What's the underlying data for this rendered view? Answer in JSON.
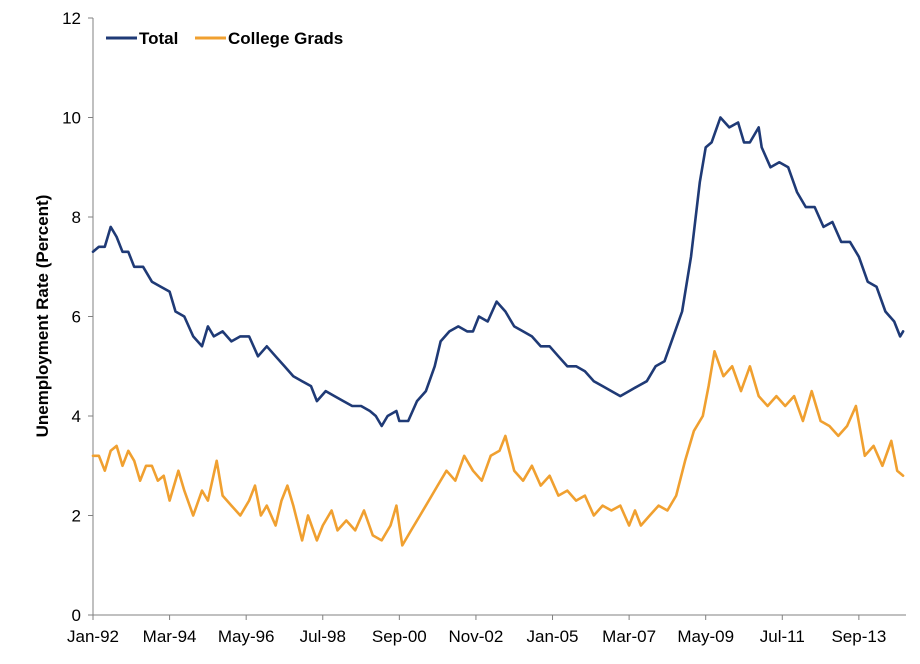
{
  "chart_data": {
    "type": "line",
    "title": "",
    "xlabel": "",
    "ylabel": "Unemployment  Rate (Percent)",
    "ylim": [
      0,
      12
    ],
    "yticks": [
      0,
      2,
      4,
      6,
      8,
      10,
      12
    ],
    "xlim": [
      "1992-01",
      "2014-12"
    ],
    "xtick_labels": [
      "Jan-92",
      "Mar-94",
      "May-96",
      "Jul-98",
      "Sep-00",
      "Nov-02",
      "Jan-05",
      "Mar-07",
      "May-09",
      "Jul-11",
      "Sep-13"
    ],
    "grid": false,
    "legend": "top-left",
    "series": [
      {
        "name": "Total",
        "color": "#1F3A76",
        "points": [
          [
            "1992-01",
            7.3
          ],
          [
            "1992-03",
            7.4
          ],
          [
            "1992-05",
            7.4
          ],
          [
            "1992-07",
            7.8
          ],
          [
            "1992-09",
            7.6
          ],
          [
            "1992-11",
            7.3
          ],
          [
            "1993-01",
            7.3
          ],
          [
            "1993-03",
            7.0
          ],
          [
            "1993-06",
            7.0
          ],
          [
            "1993-09",
            6.7
          ],
          [
            "1993-12",
            6.6
          ],
          [
            "1994-03",
            6.5
          ],
          [
            "1994-05",
            6.1
          ],
          [
            "1994-08",
            6.0
          ],
          [
            "1994-11",
            5.6
          ],
          [
            "1995-02",
            5.4
          ],
          [
            "1995-04",
            5.8
          ],
          [
            "1995-06",
            5.6
          ],
          [
            "1995-09",
            5.7
          ],
          [
            "1995-12",
            5.5
          ],
          [
            "1996-03",
            5.6
          ],
          [
            "1996-06",
            5.6
          ],
          [
            "1996-09",
            5.2
          ],
          [
            "1996-12",
            5.4
          ],
          [
            "1997-03",
            5.2
          ],
          [
            "1997-06",
            5.0
          ],
          [
            "1997-09",
            4.8
          ],
          [
            "1997-12",
            4.7
          ],
          [
            "1998-03",
            4.6
          ],
          [
            "1998-05",
            4.3
          ],
          [
            "1998-08",
            4.5
          ],
          [
            "1998-11",
            4.4
          ],
          [
            "1999-02",
            4.3
          ],
          [
            "1999-05",
            4.2
          ],
          [
            "1999-08",
            4.2
          ],
          [
            "1999-11",
            4.1
          ],
          [
            "2000-01",
            4.0
          ],
          [
            "2000-03",
            3.8
          ],
          [
            "2000-05",
            4.0
          ],
          [
            "2000-08",
            4.1
          ],
          [
            "2000-09",
            3.9
          ],
          [
            "2000-12",
            3.9
          ],
          [
            "2001-03",
            4.3
          ],
          [
            "2001-06",
            4.5
          ],
          [
            "2001-09",
            5.0
          ],
          [
            "2001-11",
            5.5
          ],
          [
            "2002-02",
            5.7
          ],
          [
            "2002-05",
            5.8
          ],
          [
            "2002-08",
            5.7
          ],
          [
            "2002-10",
            5.7
          ],
          [
            "2002-12",
            6.0
          ],
          [
            "2003-03",
            5.9
          ],
          [
            "2003-06",
            6.3
          ],
          [
            "2003-09",
            6.1
          ],
          [
            "2003-12",
            5.8
          ],
          [
            "2004-03",
            5.7
          ],
          [
            "2004-06",
            5.6
          ],
          [
            "2004-09",
            5.4
          ],
          [
            "2004-12",
            5.4
          ],
          [
            "2005-03",
            5.2
          ],
          [
            "2005-06",
            5.0
          ],
          [
            "2005-09",
            5.0
          ],
          [
            "2005-12",
            4.9
          ],
          [
            "2006-03",
            4.7
          ],
          [
            "2006-06",
            4.6
          ],
          [
            "2006-09",
            4.5
          ],
          [
            "2006-12",
            4.4
          ],
          [
            "2007-03",
            4.5
          ],
          [
            "2007-06",
            4.6
          ],
          [
            "2007-09",
            4.7
          ],
          [
            "2007-12",
            5.0
          ],
          [
            "2008-03",
            5.1
          ],
          [
            "2008-06",
            5.6
          ],
          [
            "2008-09",
            6.1
          ],
          [
            "2008-12",
            7.2
          ],
          [
            "2009-03",
            8.7
          ],
          [
            "2009-05",
            9.4
          ],
          [
            "2009-07",
            9.5
          ],
          [
            "2009-10",
            10.0
          ],
          [
            "2010-01",
            9.8
          ],
          [
            "2010-04",
            9.9
          ],
          [
            "2010-06",
            9.5
          ],
          [
            "2010-08",
            9.5
          ],
          [
            "2010-11",
            9.8
          ],
          [
            "2010-12",
            9.4
          ],
          [
            "2011-03",
            9.0
          ],
          [
            "2011-06",
            9.1
          ],
          [
            "2011-09",
            9.0
          ],
          [
            "2011-12",
            8.5
          ],
          [
            "2012-03",
            8.2
          ],
          [
            "2012-06",
            8.2
          ],
          [
            "2012-09",
            7.8
          ],
          [
            "2012-12",
            7.9
          ],
          [
            "2013-03",
            7.5
          ],
          [
            "2013-06",
            7.5
          ],
          [
            "2013-09",
            7.2
          ],
          [
            "2013-12",
            6.7
          ],
          [
            "2014-03",
            6.6
          ],
          [
            "2014-06",
            6.1
          ],
          [
            "2014-09",
            5.9
          ],
          [
            "2014-11",
            5.6
          ],
          [
            "2014-12",
            5.7
          ]
        ]
      },
      {
        "name": "College Grads",
        "color": "#F0A030",
        "points": [
          [
            "1992-01",
            3.2
          ],
          [
            "1992-03",
            3.2
          ],
          [
            "1992-05",
            2.9
          ],
          [
            "1992-07",
            3.3
          ],
          [
            "1992-09",
            3.4
          ],
          [
            "1992-11",
            3.0
          ],
          [
            "1993-01",
            3.3
          ],
          [
            "1993-03",
            3.1
          ],
          [
            "1993-05",
            2.7
          ],
          [
            "1993-07",
            3.0
          ],
          [
            "1993-09",
            3.0
          ],
          [
            "1993-11",
            2.7
          ],
          [
            "1994-01",
            2.8
          ],
          [
            "1994-03",
            2.3
          ],
          [
            "1994-06",
            2.9
          ],
          [
            "1994-08",
            2.5
          ],
          [
            "1994-11",
            2.0
          ],
          [
            "1995-02",
            2.5
          ],
          [
            "1995-04",
            2.3
          ],
          [
            "1995-07",
            3.1
          ],
          [
            "1995-09",
            2.4
          ],
          [
            "1995-12",
            2.2
          ],
          [
            "1996-03",
            2.0
          ],
          [
            "1996-06",
            2.3
          ],
          [
            "1996-08",
            2.6
          ],
          [
            "1996-10",
            2.0
          ],
          [
            "1996-12",
            2.2
          ],
          [
            "1997-03",
            1.8
          ],
          [
            "1997-05",
            2.3
          ],
          [
            "1997-07",
            2.6
          ],
          [
            "1997-09",
            2.2
          ],
          [
            "1997-12",
            1.5
          ],
          [
            "1998-02",
            2.0
          ],
          [
            "1998-05",
            1.5
          ],
          [
            "1998-07",
            1.8
          ],
          [
            "1998-10",
            2.1
          ],
          [
            "1998-12",
            1.7
          ],
          [
            "1999-03",
            1.9
          ],
          [
            "1999-06",
            1.7
          ],
          [
            "1999-09",
            2.1
          ],
          [
            "1999-12",
            1.6
          ],
          [
            "2000-03",
            1.5
          ],
          [
            "2000-06",
            1.8
          ],
          [
            "2000-08",
            2.2
          ],
          [
            "2000-10",
            1.4
          ],
          [
            "2001-01",
            1.7
          ],
          [
            "2001-04",
            2.0
          ],
          [
            "2001-07",
            2.3
          ],
          [
            "2001-10",
            2.6
          ],
          [
            "2002-01",
            2.9
          ],
          [
            "2002-04",
            2.7
          ],
          [
            "2002-07",
            3.2
          ],
          [
            "2002-10",
            2.9
          ],
          [
            "2003-01",
            2.7
          ],
          [
            "2003-04",
            3.2
          ],
          [
            "2003-07",
            3.3
          ],
          [
            "2003-09",
            3.6
          ],
          [
            "2003-12",
            2.9
          ],
          [
            "2004-03",
            2.7
          ],
          [
            "2004-06",
            3.0
          ],
          [
            "2004-09",
            2.6
          ],
          [
            "2004-12",
            2.8
          ],
          [
            "2005-03",
            2.4
          ],
          [
            "2005-06",
            2.5
          ],
          [
            "2005-09",
            2.3
          ],
          [
            "2005-12",
            2.4
          ],
          [
            "2006-03",
            2.0
          ],
          [
            "2006-06",
            2.2
          ],
          [
            "2006-09",
            2.1
          ],
          [
            "2006-12",
            2.2
          ],
          [
            "2007-03",
            1.8
          ],
          [
            "2007-05",
            2.1
          ],
          [
            "2007-07",
            1.8
          ],
          [
            "2007-10",
            2.0
          ],
          [
            "2008-01",
            2.2
          ],
          [
            "2008-04",
            2.1
          ],
          [
            "2008-07",
            2.4
          ],
          [
            "2008-10",
            3.1
          ],
          [
            "2009-01",
            3.7
          ],
          [
            "2009-04",
            4.0
          ],
          [
            "2009-06",
            4.6
          ],
          [
            "2009-08",
            5.3
          ],
          [
            "2009-11",
            4.8
          ],
          [
            "2010-02",
            5.0
          ],
          [
            "2010-05",
            4.5
          ],
          [
            "2010-08",
            5.0
          ],
          [
            "2010-11",
            4.4
          ],
          [
            "2011-02",
            4.2
          ],
          [
            "2011-05",
            4.4
          ],
          [
            "2011-08",
            4.2
          ],
          [
            "2011-11",
            4.4
          ],
          [
            "2012-02",
            3.9
          ],
          [
            "2012-05",
            4.5
          ],
          [
            "2012-08",
            3.9
          ],
          [
            "2012-11",
            3.8
          ],
          [
            "2013-02",
            3.6
          ],
          [
            "2013-05",
            3.8
          ],
          [
            "2013-08",
            4.2
          ],
          [
            "2013-11",
            3.2
          ],
          [
            "2014-02",
            3.4
          ],
          [
            "2014-05",
            3.0
          ],
          [
            "2014-08",
            3.5
          ],
          [
            "2014-10",
            2.9
          ],
          [
            "2014-12",
            2.8
          ]
        ]
      }
    ]
  }
}
